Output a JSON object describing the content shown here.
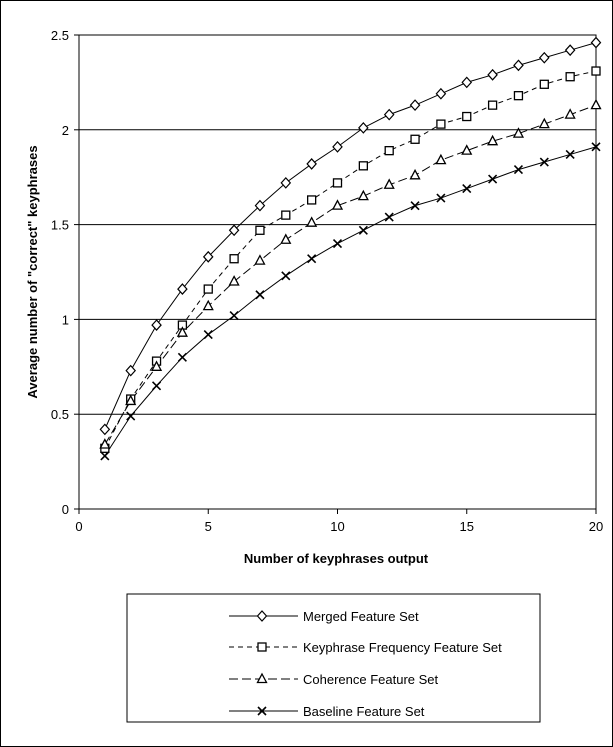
{
  "chart_data": {
    "type": "line",
    "xlabel": "Number of keyphrases output",
    "ylabel": "Average number of \"correct\" keyphrases",
    "xlim": [
      0,
      20
    ],
    "ylim": [
      0,
      2.5
    ],
    "x_ticks": [
      "0",
      "5",
      "10",
      "15",
      "20"
    ],
    "y_ticks": [
      "0",
      "0.5",
      "1",
      "1.5",
      "2",
      "2.5"
    ],
    "grid": "horizontal major gridlines",
    "legend_position": "bottom",
    "x": [
      1,
      2,
      3,
      4,
      5,
      6,
      7,
      8,
      9,
      10,
      11,
      12,
      13,
      14,
      15,
      16,
      17,
      18,
      19,
      20
    ],
    "series": [
      {
        "name": "Merged Feature Set",
        "marker": "diamond",
        "line": "solid",
        "values": [
          0.42,
          0.73,
          0.97,
          1.16,
          1.33,
          1.47,
          1.6,
          1.72,
          1.82,
          1.91,
          2.01,
          2.08,
          2.13,
          2.19,
          2.25,
          2.29,
          2.34,
          2.38,
          2.42,
          2.46
        ]
      },
      {
        "name": "Keyphrase Frequency Feature Set",
        "marker": "square",
        "line": "dashed",
        "values": [
          0.32,
          0.58,
          0.78,
          0.97,
          1.16,
          1.32,
          1.47,
          1.55,
          1.63,
          1.72,
          1.81,
          1.89,
          1.95,
          2.03,
          2.07,
          2.13,
          2.18,
          2.24,
          2.28,
          2.31
        ]
      },
      {
        "name": "Coherence Feature Set",
        "marker": "triangle",
        "line": "long-dash",
        "values": [
          0.34,
          0.57,
          0.75,
          0.93,
          1.07,
          1.2,
          1.31,
          1.42,
          1.51,
          1.6,
          1.65,
          1.71,
          1.76,
          1.84,
          1.89,
          1.94,
          1.98,
          2.03,
          2.08,
          2.13
        ]
      },
      {
        "name": "Baseline Feature Set",
        "marker": "x",
        "line": "solid",
        "values": [
          0.28,
          0.49,
          0.65,
          0.8,
          0.92,
          1.02,
          1.13,
          1.23,
          1.32,
          1.4,
          1.47,
          1.54,
          1.6,
          1.64,
          1.69,
          1.74,
          1.79,
          1.83,
          1.87,
          1.91
        ]
      }
    ]
  }
}
